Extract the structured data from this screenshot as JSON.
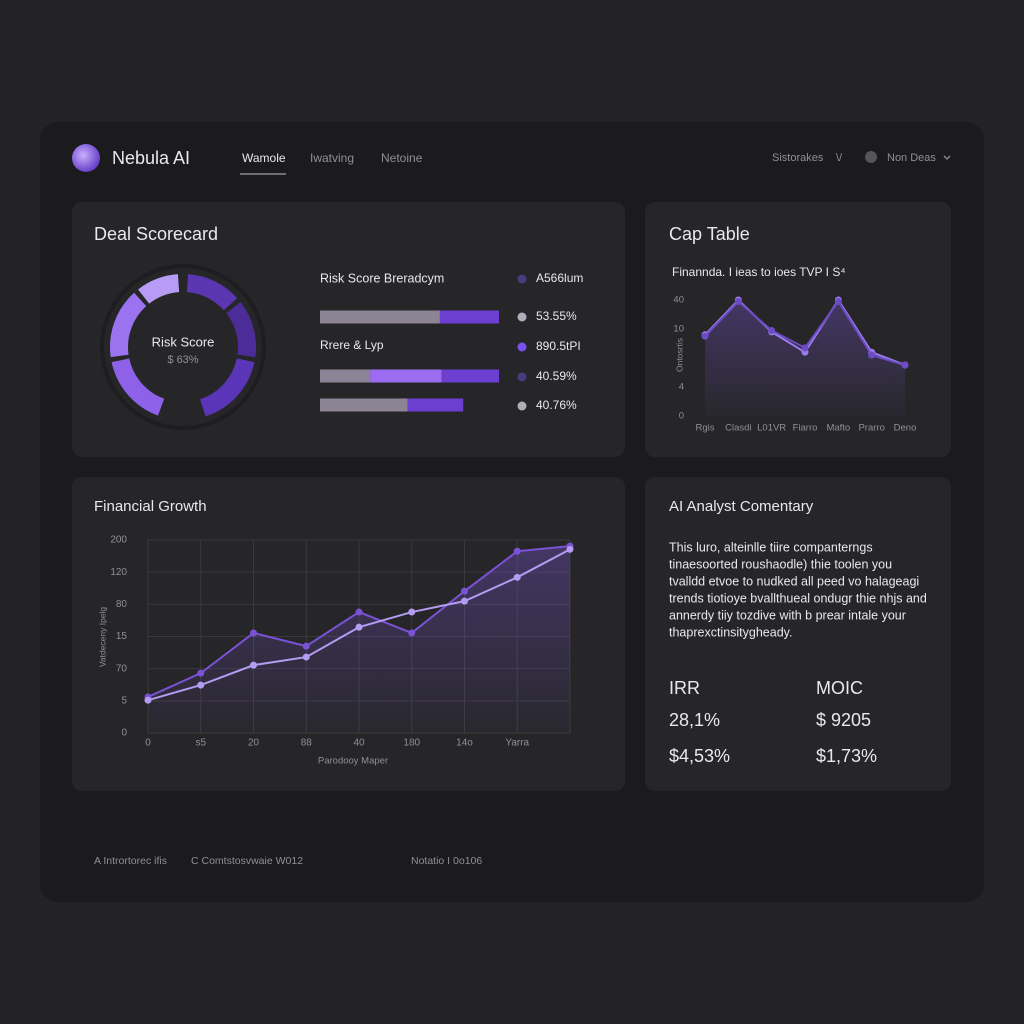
{
  "header": {
    "brand": "Nebula AI",
    "nav": [
      "Wamole",
      "Iwatving",
      "Netoine"
    ],
    "right": [
      "Sistorakes",
      "\\/",
      "Non Deas"
    ]
  },
  "scorecard": {
    "title": "Deal Scorecard",
    "gauge": {
      "label": "Risk Score",
      "value": "$ 63%"
    },
    "legend": [
      {
        "color": "#4a3a80",
        "label": "A566lum"
      },
      {
        "color": "#b0adb8",
        "label": "53.55%"
      },
      {
        "color": "#7c4ff0",
        "label": "890.5tPI"
      },
      {
        "color": "#4a3a80",
        "label": "40.59%"
      },
      {
        "color": "#b0adb8",
        "label": "40.76%"
      }
    ]
  },
  "commentary": {
    "title": "AI Analyst Comentary",
    "lines": [
      "This luro, alteinlle tiire companterngs",
      "tinaesoorted roushaodle) thie toolen you",
      "tvalldd etvoe to nudked all peed vo halageagi",
      "trends tiotioye bvallthueal ondugr thie nhjs and",
      "annerdy tiiy tozdive with b prear intale your",
      "thaprexctinsitygheady."
    ],
    "metrics": [
      {
        "label": "IRR",
        "values": [
          "28,1%",
          "$4,53%"
        ]
      },
      {
        "label": "MOIC",
        "values": [
          "$ 9205",
          "$1,73%"
        ]
      }
    ]
  },
  "footer": [
    "A Intrortorec ifis",
    "C Comtstosvwaie W012",
    "Notatio I 0o106"
  ],
  "chart_data": [
    {
      "type": "line",
      "title": "Cap Table",
      "subtitle": "Finannda. I ieas to ioes TVP I S⁴",
      "y_label": "Ontosrtis",
      "categories": [
        "Rgis",
        "Clasdi",
        "L01VR",
        "Fiarro",
        "Mafto",
        "Prarro",
        "Deno"
      ],
      "ycategories": [
        "0",
        "4",
        null,
        "10",
        "40"
      ],
      "area": true,
      "grid": false,
      "series": [
        {
          "color": "#9b7be8",
          "values": [
            2.8,
            4,
            2.9,
            2.2,
            4,
            2.2,
            1.76
          ]
        },
        {
          "color": "#6c4bc4",
          "values": [
            2.75,
            3.95,
            2.95,
            2.35,
            3.95,
            2.1,
            1.75
          ]
        }
      ]
    },
    {
      "type": "line",
      "title": "Financial Growth",
      "x_label": "Parodooy Maper",
      "y_label": "Vatdeceny Ipelg",
      "categories": [
        "0",
        "s5",
        "20",
        "88",
        "40",
        "180",
        "14o",
        "Yarra",
        null
      ],
      "ycategories": [
        "0",
        "5",
        "70",
        "15",
        "80",
        "120",
        "200"
      ],
      "area": true,
      "grid": true,
      "series": [
        {
          "color": "#7a52d6",
          "values": [
            1.12,
            1.86,
            3.11,
            2.7,
            3.76,
            3.11,
            4.41,
            5.65,
            5.81
          ]
        },
        {
          "color": "#b39cf2",
          "values": [
            1.02,
            1.49,
            2.11,
            2.36,
            3.29,
            3.76,
            4.1,
            4.84,
            5.71
          ]
        }
      ]
    },
    {
      "type": "stacked-bar",
      "title": "Risk Score Breradcym",
      "categories": [
        null,
        "Rrere & Lyp",
        null
      ],
      "xlim": [
        0,
        100
      ],
      "series": [
        {
          "color": "#8a8494",
          "values": [
            67,
            28,
            49
          ]
        },
        {
          "color": "#9b6cf0",
          "values": [
            null,
            40,
            null
          ]
        },
        {
          "color": "#6c3fd1",
          "values": [
            33,
            32,
            31
          ]
        }
      ]
    }
  ]
}
